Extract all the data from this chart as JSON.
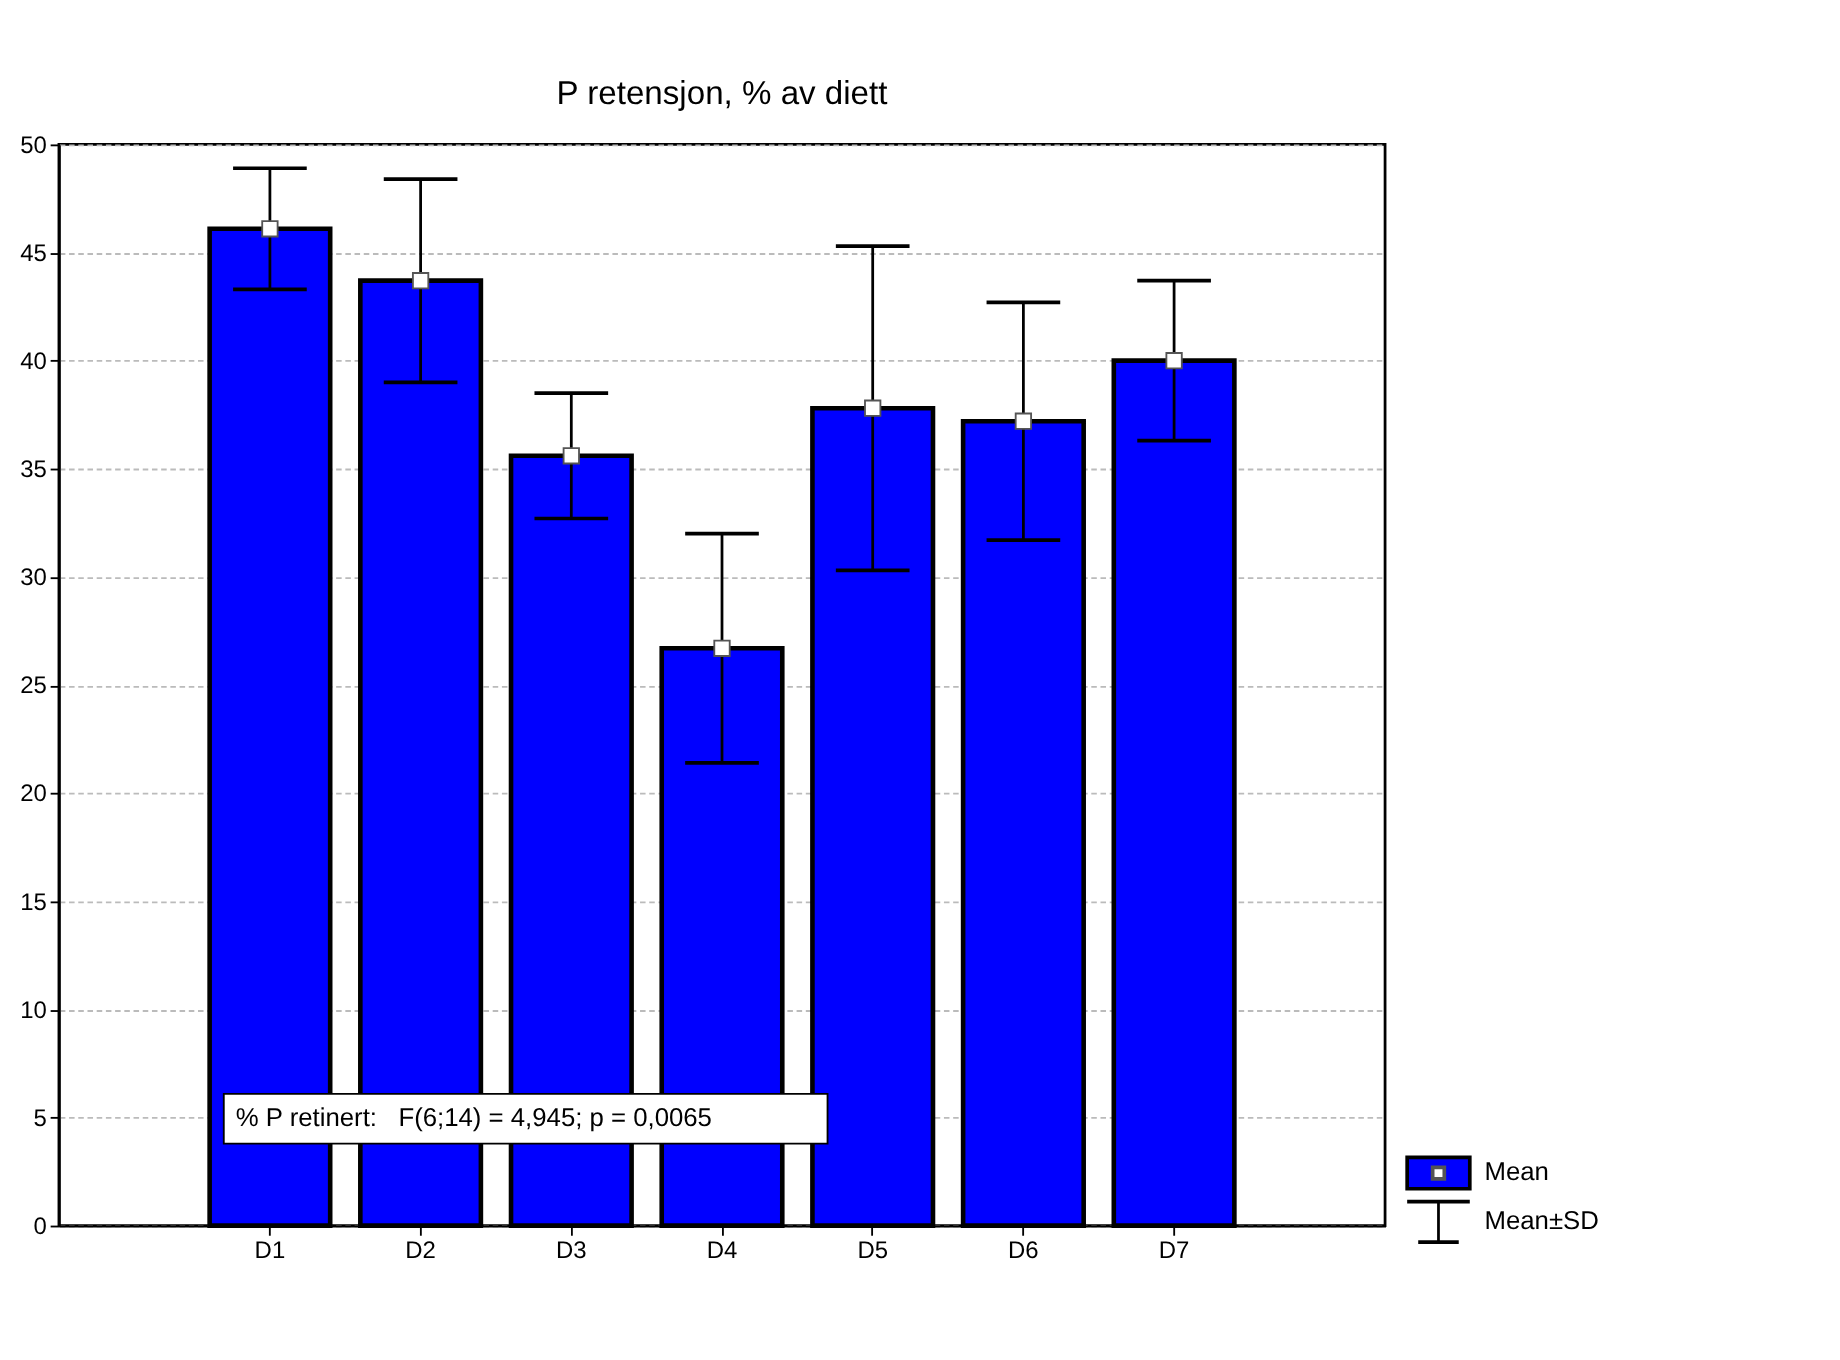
{
  "chart_data": {
    "type": "bar",
    "title": "P retensjon, % av diett",
    "categories": [
      "D1",
      "D2",
      "D3",
      "D4",
      "D5",
      "D6",
      "D7"
    ],
    "series": [
      {
        "name": "Mean",
        "color": "#0000ff",
        "values": [
          46.1,
          43.7,
          35.6,
          26.7,
          37.8,
          37.2,
          40.0
        ],
        "errors": [
          2.8,
          4.7,
          2.9,
          5.3,
          7.5,
          5.5,
          3.7
        ]
      },
      {
        "type": "scatter",
        "color": "#ffffff",
        "marker": "square",
        "x": [
          "D1",
          "D2",
          "D3",
          "D4",
          "D5",
          "D6",
          "D7"
        ],
        "values": [
          46.1,
          43.7,
          35.6,
          26.7,
          37.8,
          37.2,
          40.0
        ]
      }
    ],
    "ylim": [
      0,
      50
    ],
    "yticks": [
      0,
      5,
      10,
      15,
      20,
      25,
      30,
      35,
      40,
      45,
      50
    ],
    "grid": "y",
    "legend": "bottom right",
    "annotations": [
      "% P retinert:   F(6;14) = 4,945; p = 0,0065",
      "Mean±SD"
    ]
  }
}
